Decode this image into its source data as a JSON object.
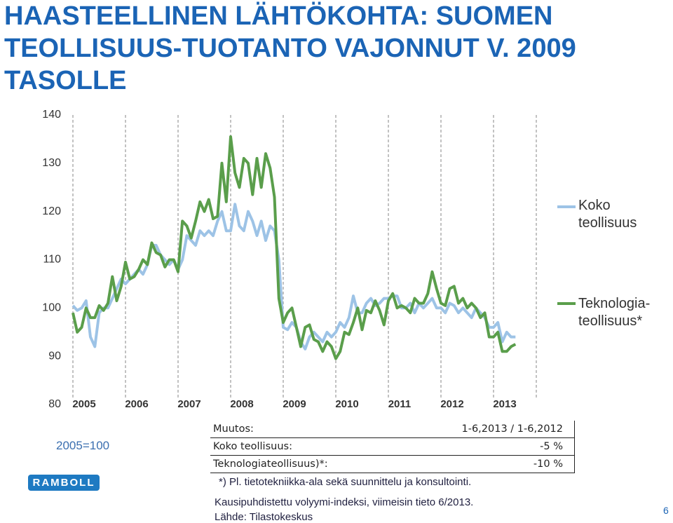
{
  "title": "HAASTEELLINEN LÄHTÖKOHTA: SUOMEN TEOLLISUUS-TUOTANTO VAJONNUT V. 2009 TASOLLE",
  "chart_data": {
    "type": "line",
    "xlim": [
      2005,
      2013.5
    ],
    "xticks": [
      2005,
      2006,
      2007,
      2008,
      2009,
      2010,
      2011,
      2012,
      2013
    ],
    "ylim": [
      80,
      140
    ],
    "yticks": [
      80,
      90,
      100,
      110,
      120,
      130,
      140
    ],
    "grid": true,
    "series": [
      {
        "name": "Koko teollisuus",
        "color": "#9dc3e6",
        "values": [
          100.5,
          99.5,
          100,
          101.5,
          94,
          92,
          99,
          100,
          100,
          102,
          104,
          106,
          105,
          106,
          107,
          108,
          107,
          109,
          113,
          113,
          111,
          110,
          109,
          110,
          108,
          110,
          115,
          114,
          113,
          116,
          115,
          116,
          115,
          118,
          120,
          116,
          116,
          121.5,
          117,
          116,
          120,
          118,
          115,
          118,
          114,
          117,
          116,
          110,
          96,
          95.5,
          97,
          96,
          93,
          91.5,
          94,
          95,
          94,
          93,
          95,
          94,
          95,
          97,
          96,
          98,
          102.5,
          99,
          99,
          101,
          102,
          100.5,
          101,
          102,
          102,
          102.5,
          102.5,
          100,
          100,
          101,
          99,
          101,
          100,
          101,
          102,
          100,
          100,
          99,
          101,
          100.5,
          99,
          100,
          99,
          98,
          100,
          99,
          98,
          96,
          96,
          97,
          93,
          95,
          94,
          94
        ]
      },
      {
        "name": "Teknologia-teollisuus*",
        "color": "#5a9e4b",
        "values": [
          99,
          95,
          96,
          100,
          98,
          98,
          100.5,
          99.5,
          101,
          106.5,
          101.5,
          104.5,
          109.5,
          106,
          106.5,
          108,
          110,
          109,
          113.5,
          111.5,
          111,
          108.5,
          110,
          110,
          107.5,
          118,
          117,
          114.5,
          118,
          122,
          120,
          122.5,
          118.5,
          119,
          130,
          122,
          135.5,
          128,
          125,
          131,
          130,
          123.5,
          131,
          125,
          132,
          129,
          123,
          102,
          97,
          99,
          100,
          96,
          92,
          96,
          96.5,
          93.5,
          93,
          91,
          93,
          92,
          89.5,
          91,
          95,
          94.5,
          97,
          100,
          95.5,
          99.5,
          99,
          101.5,
          99.5,
          96.5,
          101.5,
          103,
          100,
          100.5,
          100,
          99,
          102,
          101,
          101,
          103,
          107.5,
          104,
          101,
          100.5,
          104,
          104.5,
          101,
          102,
          100,
          101,
          100,
          98,
          99,
          94,
          94,
          95,
          91,
          91,
          92,
          92.5
        ]
      }
    ]
  },
  "base": "2005=100",
  "table": {
    "rows": [
      [
        "Muutos:",
        "1-6,2013 / 1-6,2012"
      ],
      [
        "Koko teollisuus:",
        "-5 %"
      ],
      [
        "Teknologiateollisuus)*:",
        "-10 %"
      ]
    ]
  },
  "notes": [
    "*) Pl. tietotekniikka-ala sekä suunnittelu ja konsultointi.",
    "Kausipuhdistettu volyymi-indeksi, viimeisin tieto 6/2013.",
    "Lähde: Tilastokeskus"
  ],
  "logo": "RAMBOLL",
  "page_number": "6"
}
